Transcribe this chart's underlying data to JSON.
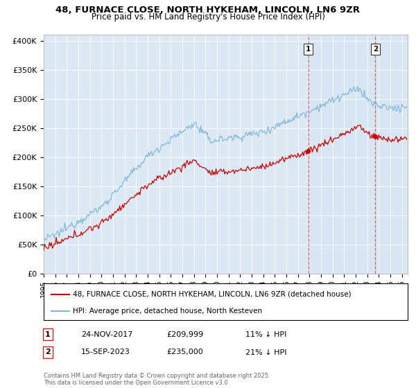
{
  "title": "48, FURNACE CLOSE, NORTH HYKEHAM, LINCOLN, LN6 9ZR",
  "subtitle": "Price paid vs. HM Land Registry's House Price Index (HPI)",
  "background_color": "#ffffff",
  "plot_background": "#dce9f5",
  "grid_color": "#ffffff",
  "ylim": [
    0,
    410000
  ],
  "yticks": [
    0,
    50000,
    100000,
    150000,
    200000,
    250000,
    300000,
    350000,
    400000
  ],
  "ytick_labels": [
    "£0",
    "£50K",
    "£100K",
    "£150K",
    "£200K",
    "£250K",
    "£300K",
    "£350K",
    "£400K"
  ],
  "xlim_start": 1995.0,
  "xlim_end": 2026.5,
  "hpi_color": "#7ab5d8",
  "price_color": "#cc0000",
  "marker1_x": 2017.9,
  "marker1_y": 209999,
  "marker2_x": 2023.71,
  "marker2_y": 235000,
  "marker1_label": "1",
  "marker2_label": "2",
  "marker1_date": "24-NOV-2017",
  "marker1_price": "£209,999",
  "marker1_note": "11% ↓ HPI",
  "marker2_date": "15-SEP-2023",
  "marker2_price": "£235,000",
  "marker2_note": "21% ↓ HPI",
  "legend_line1": "48, FURNACE CLOSE, NORTH HYKEHAM, LINCOLN, LN6 9ZR (detached house)",
  "legend_line2": "HPI: Average price, detached house, North Kesteven",
  "footer": "Contains HM Land Registry data © Crown copyright and database right 2025.\nThis data is licensed under the Open Government Licence v3.0.",
  "dashed_line1_x": 2017.9,
  "dashed_line2_x": 2023.71
}
